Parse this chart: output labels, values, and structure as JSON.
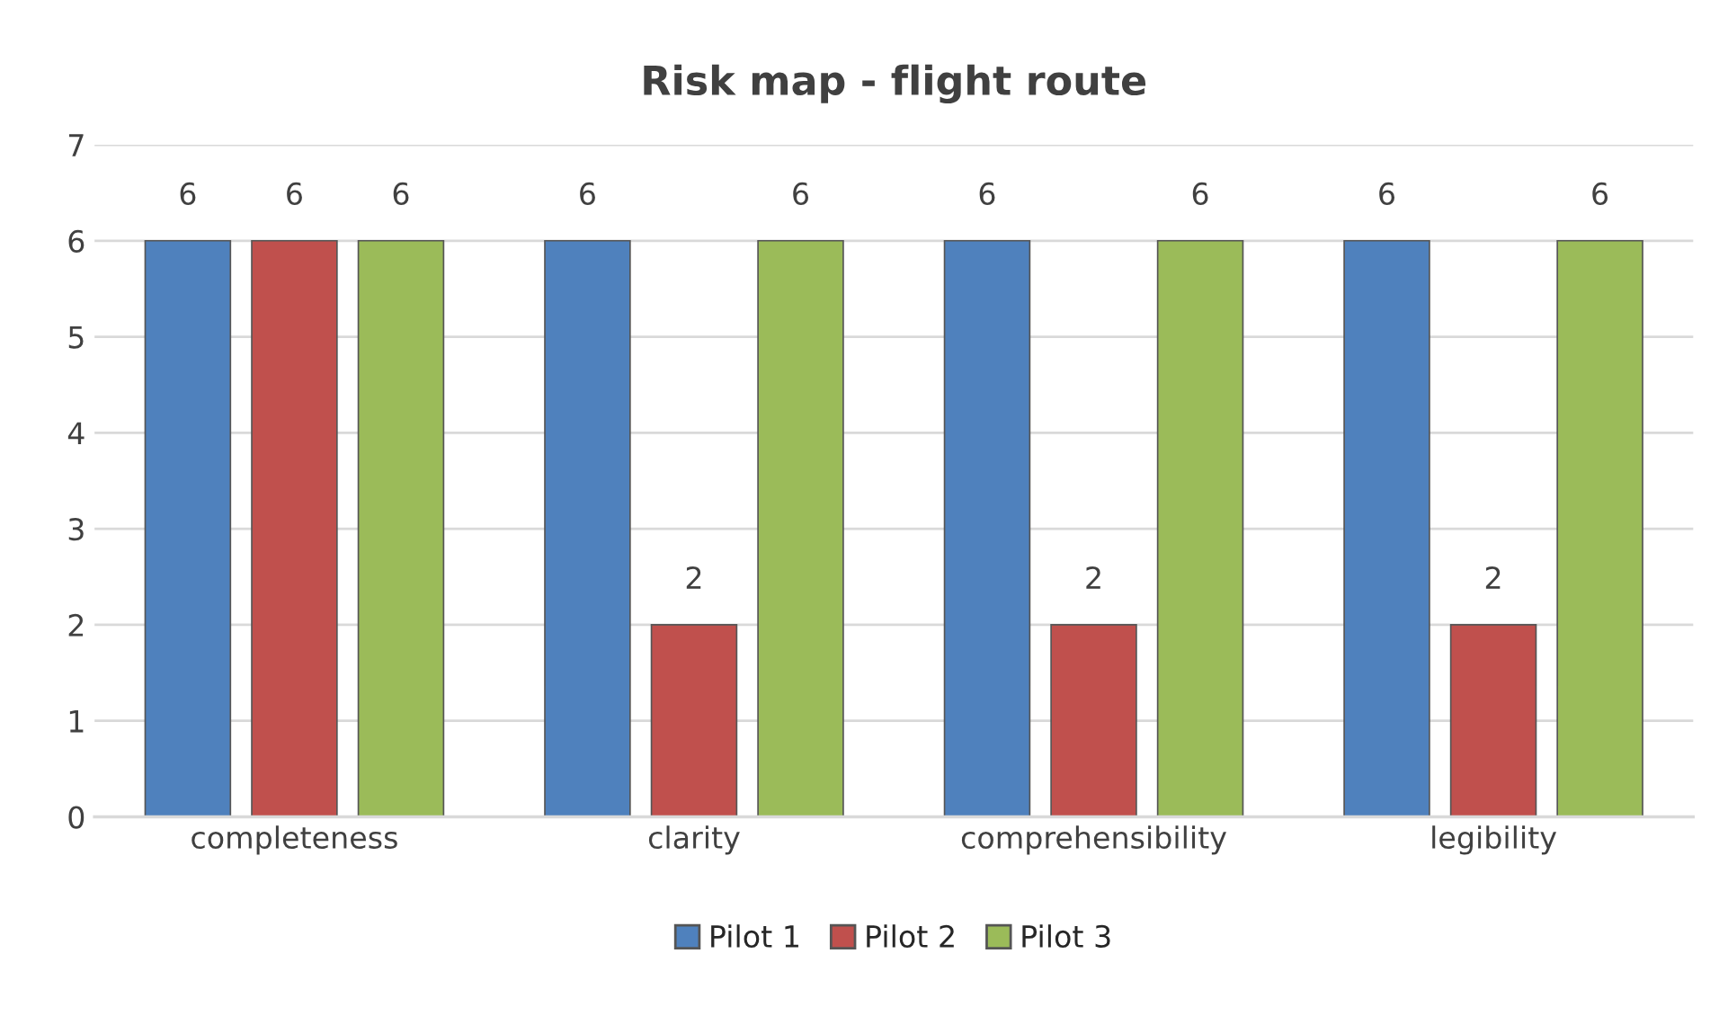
{
  "chart_data": {
    "type": "bar",
    "title": "Risk map - flight route",
    "categories": [
      "completeness",
      "clarity",
      "comprehensibility",
      "legibility"
    ],
    "series": [
      {
        "name": "Pilot 1",
        "color": "#4f81bd",
        "values": [
          6,
          6,
          6,
          6
        ]
      },
      {
        "name": "Pilot 2",
        "color": "#c0504d",
        "values": [
          6,
          2,
          2,
          2
        ]
      },
      {
        "name": "Pilot 3",
        "color": "#9bbb59",
        "values": [
          6,
          6,
          6,
          6
        ]
      }
    ],
    "ylim": [
      0,
      7
    ],
    "yticks": [
      0,
      1,
      2,
      3,
      4,
      5,
      6,
      7
    ],
    "grid": "y",
    "legend": "bottom",
    "data_labels": true
  }
}
